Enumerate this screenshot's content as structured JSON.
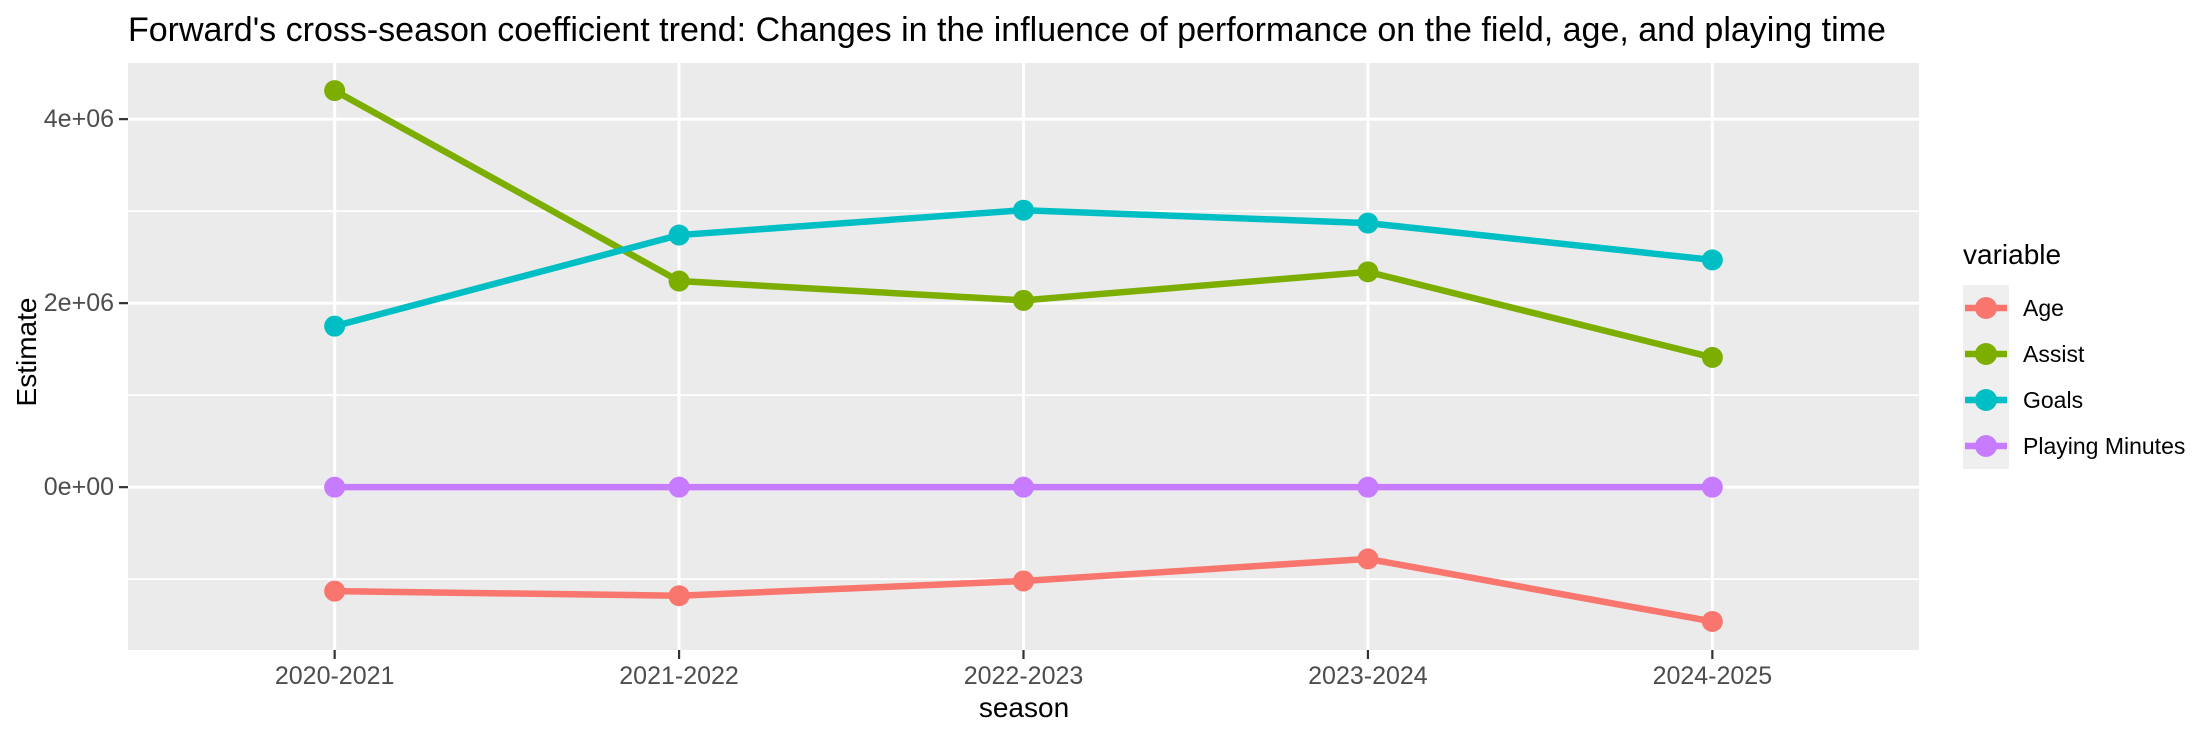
{
  "chart_data": {
    "type": "line",
    "title": "Forward's cross-season coefficient trend: Changes in the influence of performance on the field, age, and playing time",
    "xlabel": "season",
    "ylabel": "Estimate",
    "legend_title": "variable",
    "legend_position": "right",
    "categories": [
      "2020-2021",
      "2021-2022",
      "2022-2023",
      "2023-2024",
      "2024-2025"
    ],
    "series": [
      {
        "name": "Age",
        "color": "#F8766D",
        "values": [
          -1130000,
          -1180000,
          -1020000,
          -780000,
          -1460000
        ]
      },
      {
        "name": "Assist",
        "color": "#7CAE00",
        "values": [
          4310000,
          2240000,
          2030000,
          2340000,
          1410000
        ]
      },
      {
        "name": "Goals",
        "color": "#00BFC4",
        "values": [
          1750000,
          2740000,
          3010000,
          2870000,
          2470000
        ]
      },
      {
        "name": "Playing Minutes",
        "color": "#C77CFF",
        "values": [
          0,
          0,
          0,
          0,
          0
        ]
      }
    ],
    "y_ticks": [
      {
        "value": 0,
        "label": "0e+00"
      },
      {
        "value": 2000000,
        "label": "2e+06"
      },
      {
        "value": 4000000,
        "label": "4e+06"
      }
    ],
    "y_minor_ticks": [
      -1000000,
      1000000,
      3000000
    ],
    "ylim": [
      -1770000,
      4610000
    ],
    "grid": true,
    "panel_bg": "#EBEBEB",
    "grid_color": "#FFFFFF",
    "tick_text_color": "#4d4d4d",
    "tick_mark_color": "#333333"
  }
}
